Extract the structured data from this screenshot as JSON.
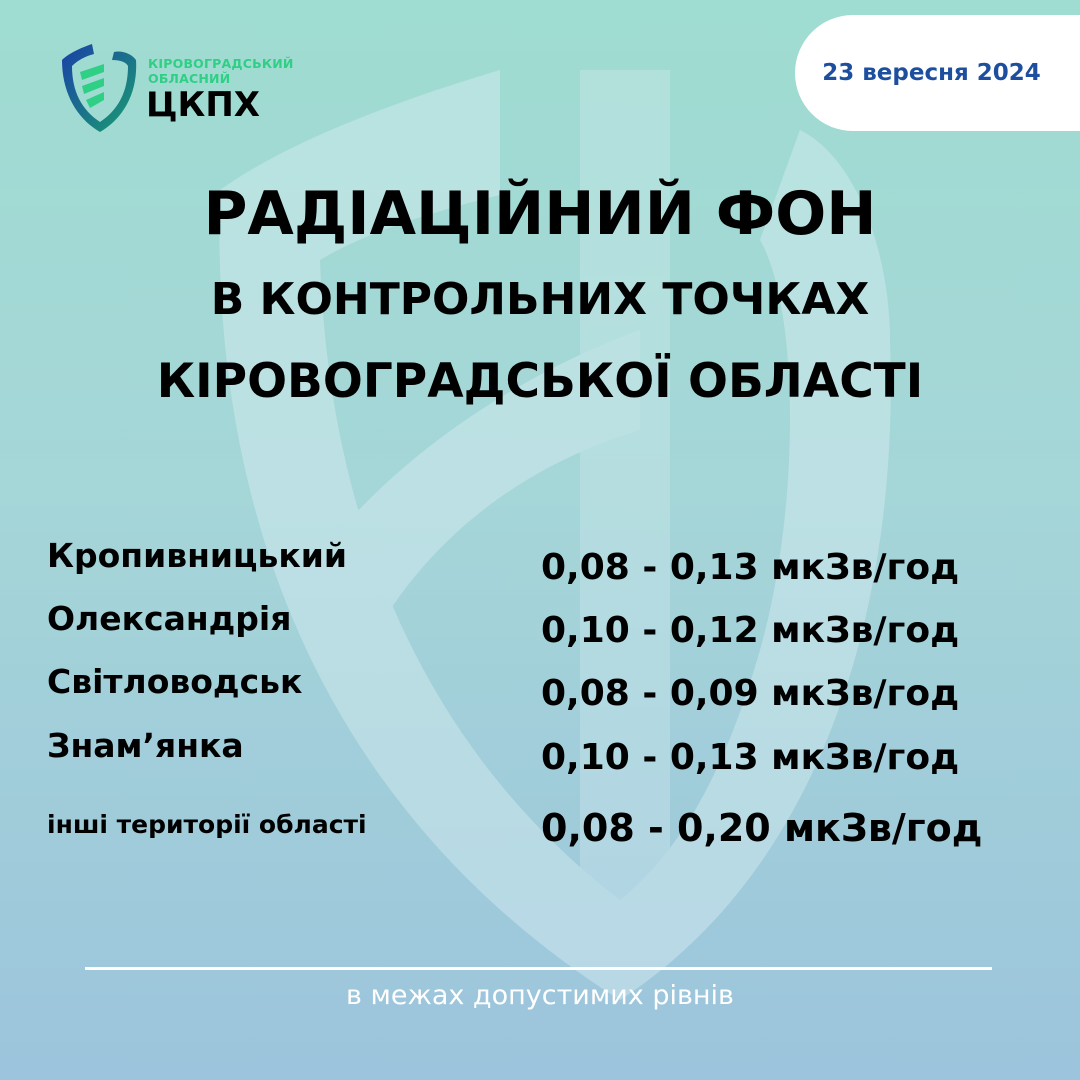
{
  "logo": {
    "line1": "КІРОВОГРАДСЬКИЙ",
    "line2": "ОБЛАСНИЙ",
    "name": "ЦКПХ",
    "colors": {
      "blue": "#1d4f9e",
      "green": "#2fcf85"
    }
  },
  "date": "23 вересня 2024",
  "title": {
    "line1": "РАДІАЦІЙНИЙ ФОН",
    "line2": "В КОНТРОЛЬНИХ ТОЧКАХ",
    "line3": "КІРОВОГРАДСЬКОЇ ОБЛАСТІ"
  },
  "rows": [
    {
      "place": "Кропивницький",
      "value": "0,08 - 0,13 мкЗв/год"
    },
    {
      "place": "Олександрія",
      "value": "0,10 - 0,12 мкЗв/год"
    },
    {
      "place": "Світловодськ",
      "value": "0,08 - 0,09 мкЗв/год"
    },
    {
      "place": "Знам’янка",
      "value": "0,10 - 0,13 мкЗв/год"
    },
    {
      "place": "інші території області",
      "value": "0,08 - 0,20 мкЗв/год"
    }
  ],
  "footer": "в межах допустимих рівнів"
}
